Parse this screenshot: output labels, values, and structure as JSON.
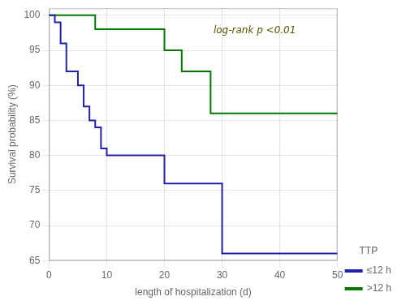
{
  "chart_data": {
    "type": "step",
    "xlabel": "length of hospitalization (d)",
    "ylabel": "Survival probability (%)",
    "annotation": "log-rank p <0.01",
    "legend_title": "TTP",
    "series": [
      {
        "name": "≤12 h",
        "color": "#2020aa",
        "x": [
          0,
          1,
          1,
          2,
          2,
          3,
          3,
          5,
          5,
          6,
          6,
          7,
          7,
          8,
          8,
          9,
          9,
          10,
          10,
          11,
          11,
          12,
          12,
          20,
          20,
          22,
          22,
          25,
          25,
          30,
          30,
          38,
          38,
          50
        ],
        "values": [
          100,
          100,
          99,
          99,
          96,
          96,
          92,
          92,
          90,
          90,
          87,
          87,
          85,
          85,
          84,
          84,
          81,
          81,
          80,
          80,
          80,
          80,
          80,
          80,
          76,
          76,
          76,
          76,
          76,
          76,
          66,
          66,
          66,
          66
        ]
      },
      {
        "name": ">12 h",
        "color": "#007700",
        "x": [
          0,
          8,
          8,
          20,
          20,
          23,
          23,
          25,
          25,
          28,
          28,
          30,
          30,
          43,
          43,
          50
        ],
        "values": [
          100,
          100,
          98,
          98,
          95,
          95,
          92,
          92,
          92,
          92,
          86,
          86,
          86,
          86,
          86,
          86
        ]
      }
    ],
    "xlim": [
      0,
      50
    ],
    "xticks": [
      0,
      10,
      20,
      30,
      40,
      50
    ],
    "ylim": [
      65,
      101
    ],
    "yticks": [
      65,
      70,
      75,
      80,
      85,
      90,
      95,
      100
    ],
    "grid": true,
    "legend": "lower right"
  }
}
